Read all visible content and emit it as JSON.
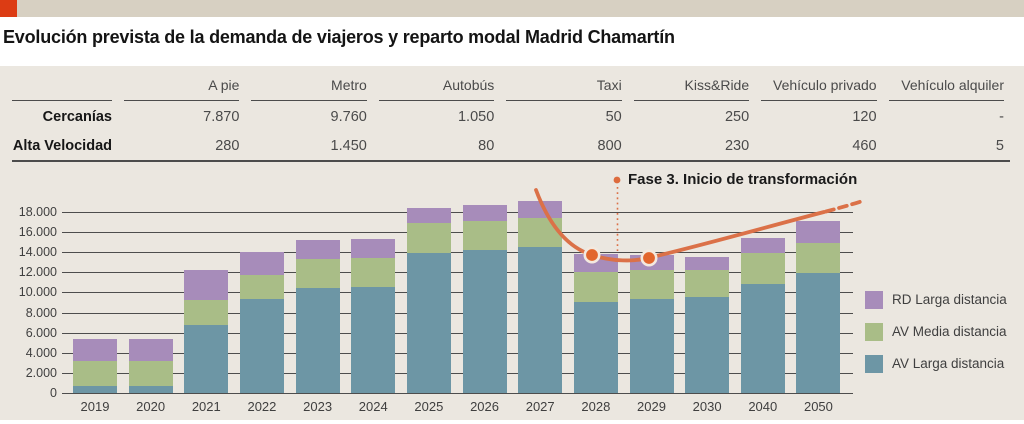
{
  "header": {
    "title": "Evolución prevista de la demanda de viajeros y reparto modal Madrid Chamartín"
  },
  "table": {
    "columns": [
      "A pie",
      "Metro",
      "Autobús",
      "Taxi",
      "Kiss&Ride",
      "Vehículo privado",
      "Vehículo alquiler"
    ],
    "rows": [
      {
        "label": "Cercanías",
        "values": [
          "7.870",
          "9.760",
          "1.050",
          "50",
          "250",
          "120",
          "-"
        ]
      },
      {
        "label": "Alta Velocidad",
        "values": [
          "280",
          "1.450",
          "80",
          "800",
          "230",
          "460",
          "5"
        ]
      }
    ]
  },
  "chart_data": {
    "type": "bar",
    "stacked": true,
    "categories": [
      "2019",
      "2020",
      "2021",
      "2022",
      "2023",
      "2024",
      "2025",
      "2026",
      "2027",
      "2028",
      "2029",
      "2030",
      "2040",
      "2050"
    ],
    "series": [
      {
        "name": "AV Larga distancia",
        "color": "#6d96a5",
        "values": [
          700,
          700,
          6800,
          9300,
          10400,
          10500,
          13900,
          14200,
          14500,
          9100,
          9300,
          9500,
          10800,
          11900
        ]
      },
      {
        "name": "AV Media distancia",
        "color": "#a9bd87",
        "values": [
          2500,
          2500,
          2500,
          2400,
          2900,
          2900,
          3000,
          2900,
          2900,
          2900,
          2900,
          2700,
          3100,
          3000
        ]
      },
      {
        "name": "RD Larga distancia",
        "color": "#a78cba",
        "values": [
          2200,
          2200,
          2900,
          2300,
          1900,
          1900,
          1500,
          1600,
          1700,
          1800,
          1500,
          1300,
          1500,
          2200
        ]
      }
    ],
    "ylim": [
      0,
      18000
    ],
    "ytick_step": 2000,
    "ytick_labels": [
      "0",
      "2.000",
      "4.000",
      "6.000",
      "8.000",
      "10.000",
      "12.000",
      "14.000",
      "16.000",
      "18.000"
    ],
    "grid": true,
    "legend_position": "right",
    "annotation": {
      "label": "Fase 3. Inicio de transformación",
      "marker_years": [
        "2028",
        "2029"
      ]
    }
  },
  "colors": {
    "accent_orange": "#dc3c14",
    "curve_orange": "#db7148",
    "marker_orange": "#e2662d",
    "panel_beige": "#ebe7e0",
    "topbar_beige": "#d7d0c2",
    "gridline": "#4d4d4d"
  }
}
